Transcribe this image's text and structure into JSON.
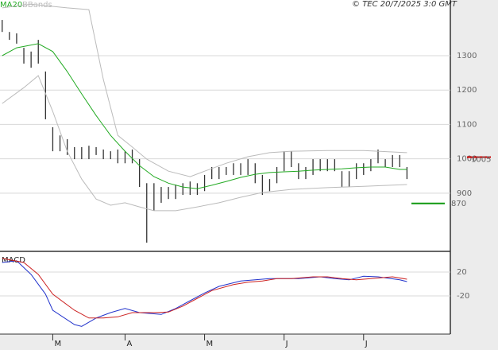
{
  "chart_data": [
    {
      "type": "ohlc",
      "source": "© TEC 20/7/2025 3:0 GMT",
      "xlim": [
        -0.3,
        62
      ],
      "ylim": [
        733,
        1462
      ],
      "yticks": [
        900,
        1000,
        1100,
        1200,
        1300
      ],
      "grid": true,
      "bar_color": "#333333",
      "bars": {
        "high": [
          1404,
          1369,
          1365,
          1323,
          1312,
          1346,
          1254,
          1092,
          1068,
          1057,
          1034,
          1034,
          1038,
          1034,
          1027,
          1022,
          1027,
          1022,
          1027,
          999,
          929,
          929,
          918,
          918,
          925,
          929,
          934,
          929,
          953,
          976,
          976,
          976,
          987,
          987,
          999,
          987,
          953,
          941,
          976,
          1022,
          1022,
          987,
          976,
          999,
          999,
          999,
          999,
          964,
          964,
          987,
          987,
          999,
          1027,
          999,
          1011,
          1011,
          976
        ],
        "low": [
          1369,
          1346,
          1335,
          1277,
          1265,
          1277,
          1115,
          1022,
          1022,
          1011,
          999,
          999,
          999,
          1011,
          999,
          999,
          987,
          987,
          987,
          918,
          756,
          849,
          872,
          883,
          883,
          895,
          895,
          895,
          906,
          941,
          941,
          953,
          953,
          953,
          953,
          929,
          895,
          906,
          929,
          964,
          976,
          941,
          941,
          953,
          964,
          964,
          964,
          918,
          918,
          941,
          953,
          964,
          987,
          976,
          976,
          976,
          941
        ]
      },
      "series": [
        {
          "name": "MA20",
          "color": "#22aa22",
          "x": [
            0,
            2,
            5,
            7,
            9,
            11,
            13,
            15,
            17,
            19,
            21,
            23,
            25,
            27,
            29,
            31,
            33,
            35,
            37,
            39,
            41,
            43,
            45,
            47,
            49,
            51,
            53,
            55,
            56
          ],
          "values": [
            1300,
            1323,
            1335,
            1312,
            1254,
            1189,
            1126,
            1068,
            1022,
            980,
            948,
            929,
            918,
            913,
            923,
            934,
            946,
            955,
            960,
            962,
            964,
            967,
            969,
            971,
            974,
            976,
            976,
            969,
            969
          ]
        },
        {
          "name": "BBands",
          "color": "#bbbbbb",
          "x": [
            0,
            4,
            9,
            12,
            14,
            16,
            18,
            20,
            23,
            26,
            28,
            31,
            34,
            37,
            40,
            45,
            50,
            56
          ],
          "values": [
            1439,
            1450,
            1439,
            1434,
            1231,
            1068,
            1034,
            999,
            964,
            948,
            964,
            987,
            1006,
            1018,
            1022,
            1024,
            1024,
            1018
          ],
          "x_lower": [
            0,
            3,
            5,
            7,
            9,
            11,
            13,
            15,
            17,
            19,
            21,
            24,
            27,
            30,
            33,
            36,
            40,
            45,
            50,
            56
          ],
          "lower": [
            1161,
            1207,
            1242,
            1138,
            1022,
            941,
            883,
            865,
            872,
            860,
            849,
            849,
            860,
            872,
            888,
            902,
            911,
            916,
            920,
            925
          ]
        }
      ],
      "levels": [
        {
          "value": 1005,
          "color": "#cc0000"
        },
        {
          "value": 870,
          "color": "#119911"
        }
      ]
    },
    {
      "type": "line",
      "title": "MACD",
      "xlim": [
        -0.3,
        62
      ],
      "ylim": [
        -84,
        52
      ],
      "yticks": [
        20,
        -20
      ],
      "grid": true,
      "xticks": [
        {
          "value": 7,
          "label": "M"
        },
        {
          "value": 17,
          "label": "A"
        },
        {
          "value": 28,
          "label": "M"
        },
        {
          "value": 39,
          "label": "J"
        },
        {
          "value": 50,
          "label": "J"
        }
      ],
      "series": [
        {
          "color": "#2233cc",
          "x": [
            0,
            2,
            4,
            6,
            7,
            10,
            11,
            13,
            15,
            17,
            19,
            22,
            24,
            26,
            28,
            30,
            33,
            35,
            37,
            39,
            41,
            44,
            46,
            48,
            50,
            52,
            55,
            56
          ],
          "values": [
            36,
            39,
            16,
            -17,
            -44,
            -68,
            -71,
            -57,
            -48,
            -41,
            -48,
            -51,
            -41,
            -28,
            -15,
            -4,
            5,
            7,
            9,
            9,
            9,
            12,
            9,
            7,
            13,
            12,
            7,
            4
          ]
        },
        {
          "color": "#cc2222",
          "x": [
            0,
            3,
            5,
            7,
            10,
            12,
            14,
            16,
            18,
            21,
            23,
            25,
            27,
            29,
            32,
            34,
            36,
            38,
            40,
            43,
            45,
            47,
            49,
            51,
            54,
            56
          ],
          "values": [
            43,
            36,
            16,
            -17,
            -44,
            -57,
            -57,
            -55,
            -48,
            -48,
            -47,
            -37,
            -24,
            -11,
            -1,
            3,
            5,
            9,
            9,
            12,
            12,
            9,
            7,
            9,
            12,
            8
          ]
        }
      ]
    }
  ]
}
